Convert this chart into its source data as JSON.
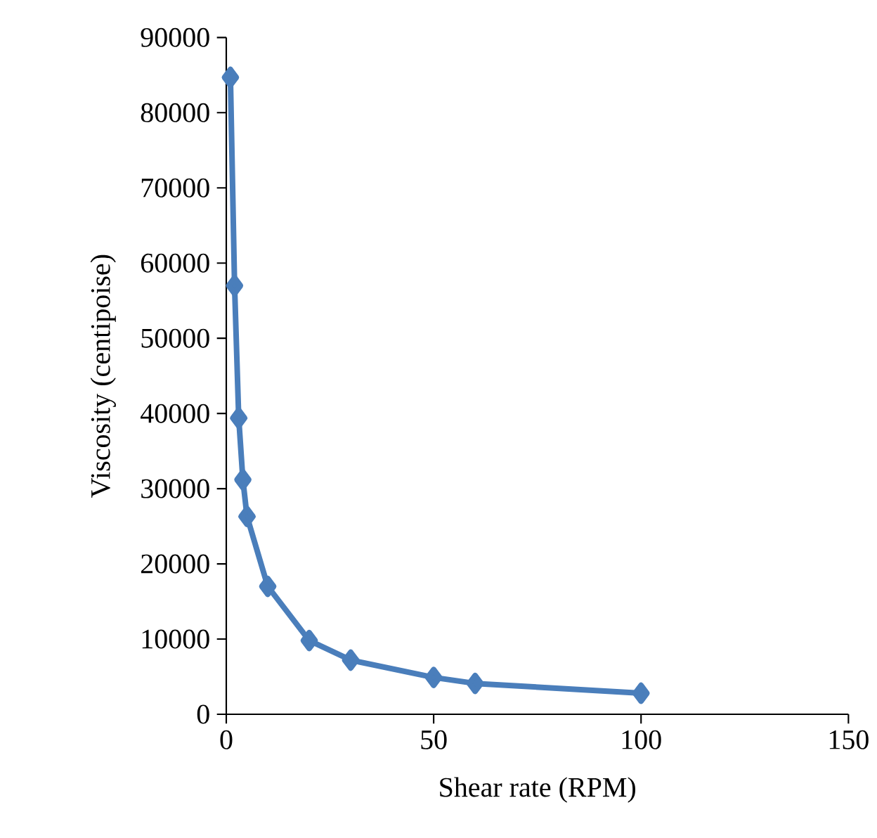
{
  "chart_data": {
    "type": "line",
    "xlabel": "Shear rate (RPM)",
    "ylabel": "Viscosity (centipoise)",
    "x": [
      1,
      2,
      3,
      4,
      5,
      10,
      20,
      30,
      50,
      60,
      100
    ],
    "series": [
      {
        "color": "#4a7ebb",
        "values": [
          84700,
          57000,
          39400,
          31200,
          26300,
          17000,
          9800,
          7200,
          4900,
          4100,
          2800
        ]
      }
    ],
    "xlim": [
      0,
      150
    ],
    "xticks": [
      0,
      50,
      100,
      150
    ],
    "ylim": [
      0,
      90000
    ],
    "yticks": [
      0,
      10000,
      20000,
      30000,
      40000,
      50000,
      60000,
      70000,
      80000,
      90000
    ],
    "marker": "diamond",
    "line_style": "solid",
    "grid": false
  }
}
